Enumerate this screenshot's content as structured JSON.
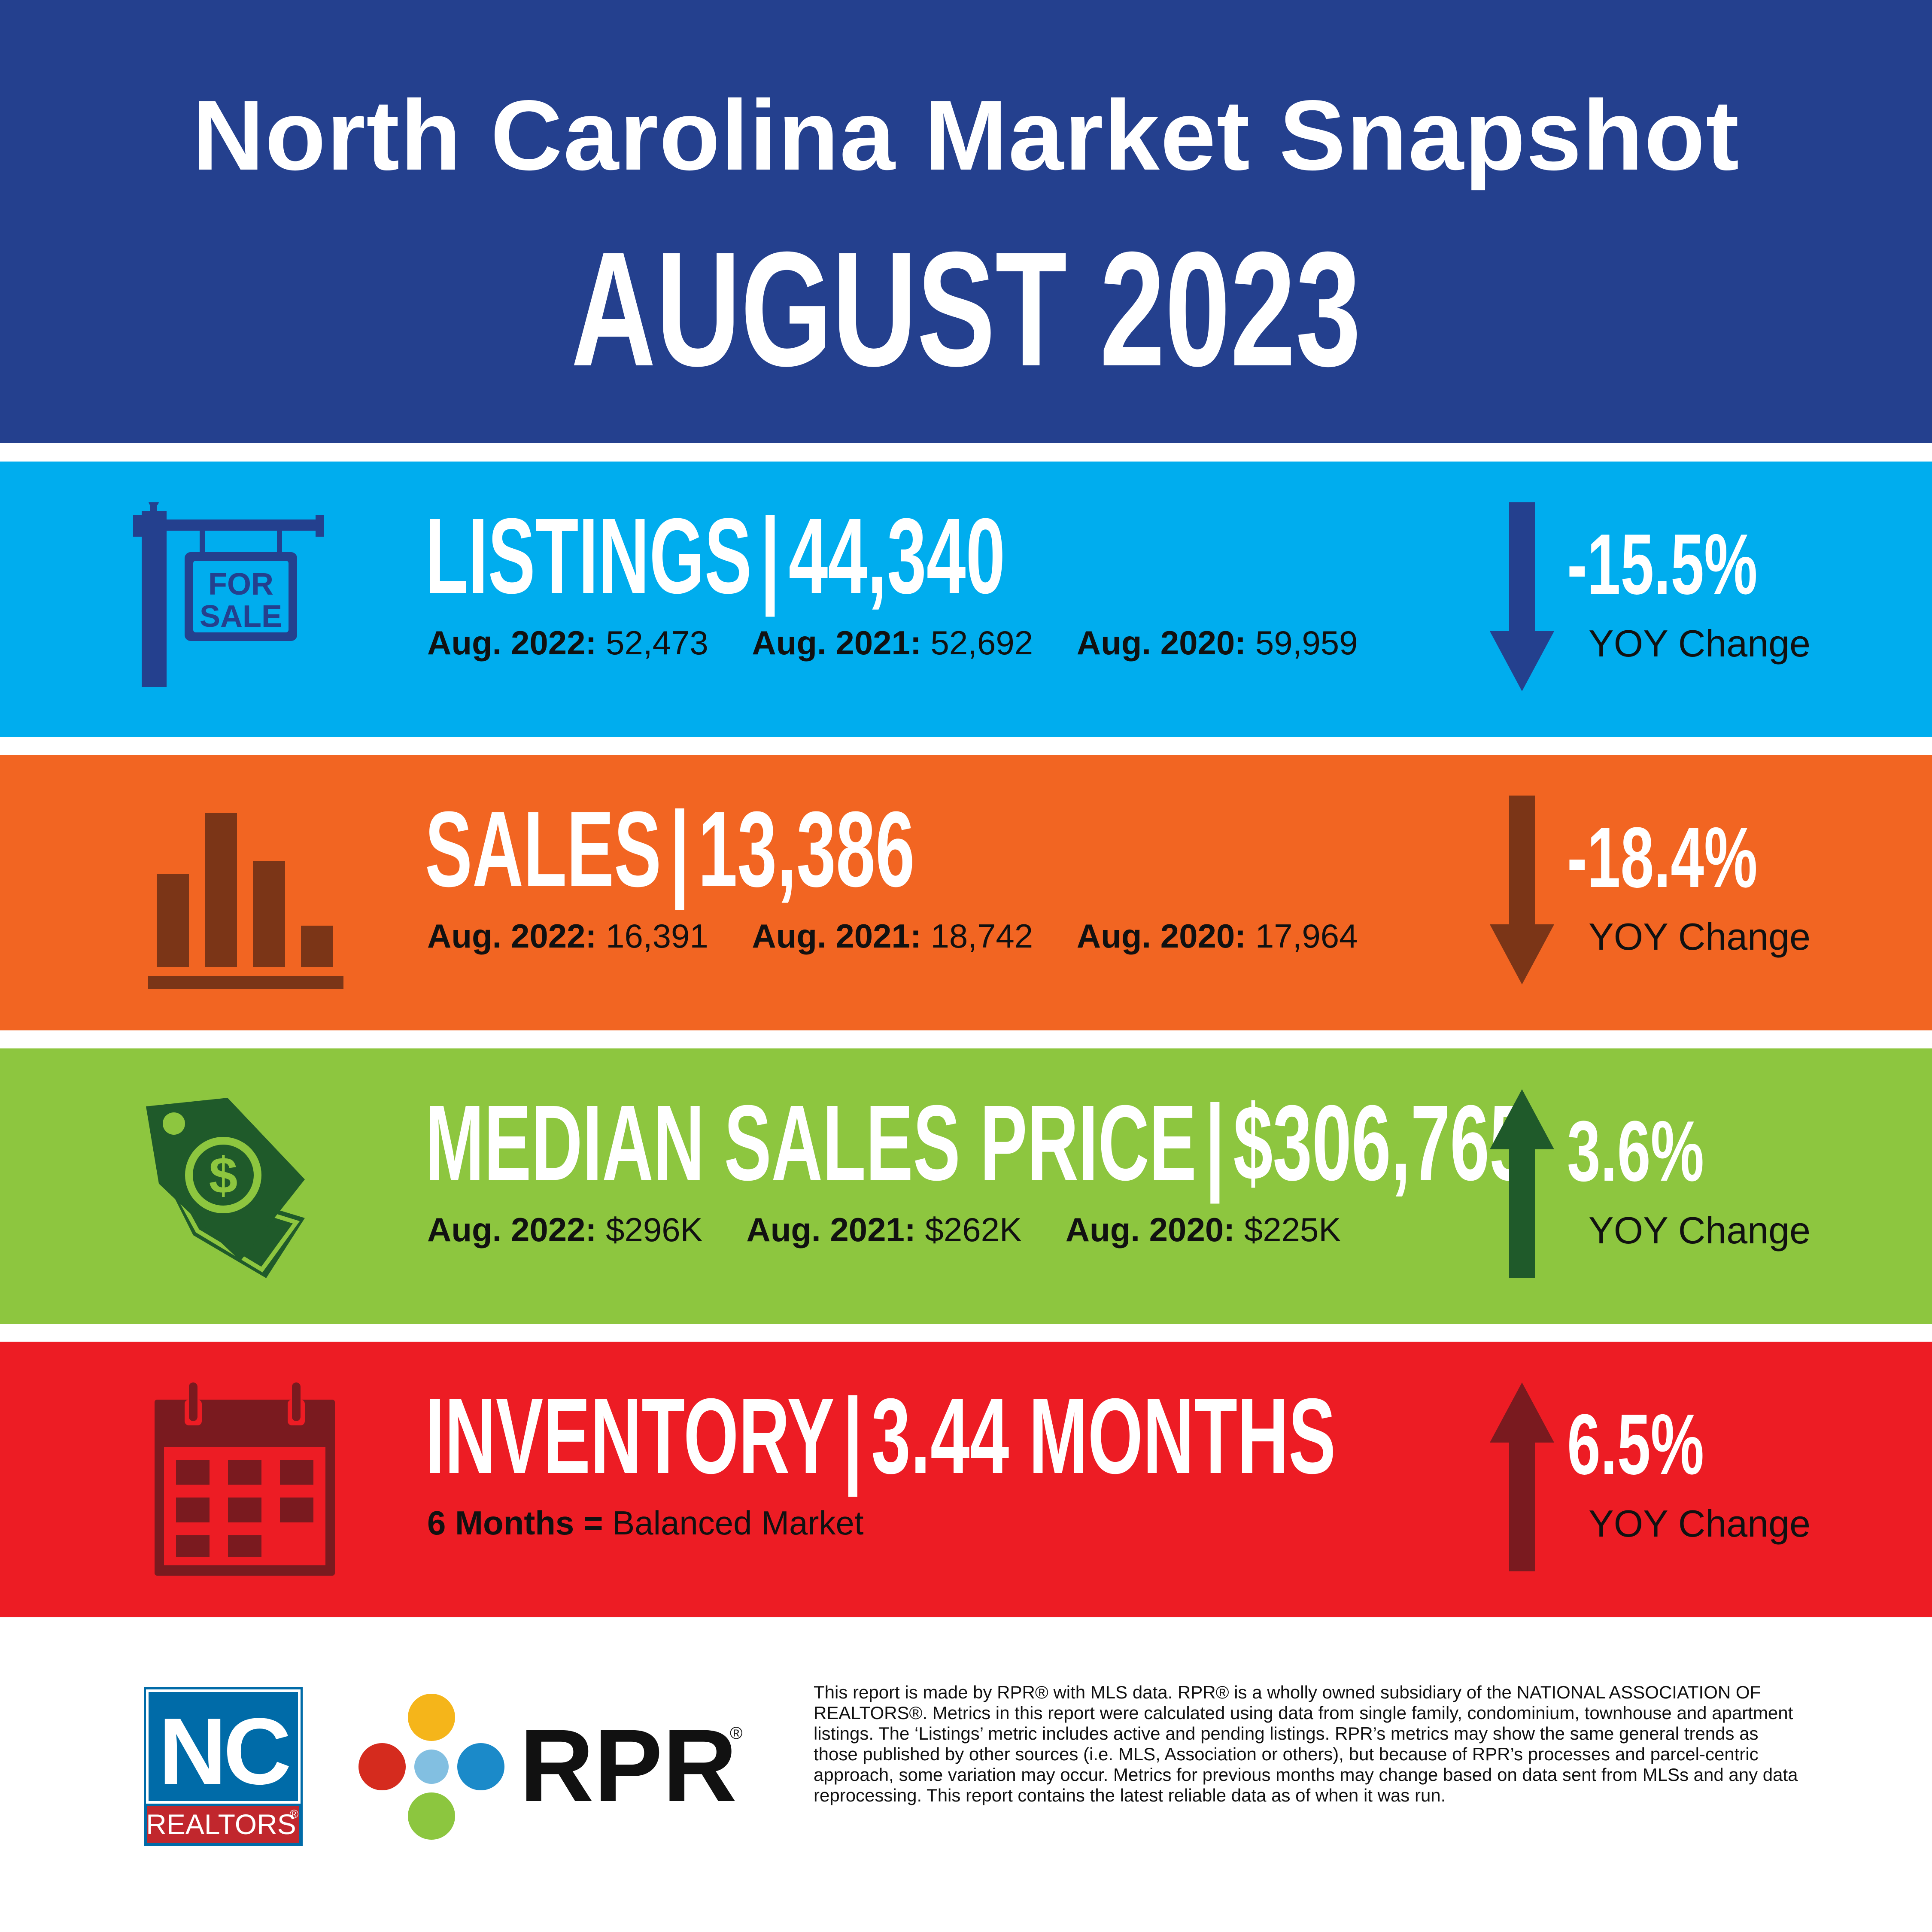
{
  "header": {
    "title": "North Carolina Market Snapshot",
    "subtitle": "AUGUST 2023",
    "background": "#24408e"
  },
  "bands": [
    {
      "id": "listings",
      "color": "#00adee",
      "icon": "for-sale-sign-icon",
      "icon_text_top": "FOR",
      "icon_text_bottom": "SALE",
      "icon_color": "#24408e",
      "label": "LISTINGS",
      "separator": "|",
      "value": "44,340",
      "history": [
        {
          "label": "Aug. 2022:",
          "value": "52,473"
        },
        {
          "label": "Aug. 2021:",
          "value": "52,692"
        },
        {
          "label": "Aug. 2020:",
          "value": "59,959"
        }
      ],
      "direction": "down",
      "change": "-15.5%",
      "change_label": "YOY Change"
    },
    {
      "id": "sales",
      "color": "#f26522",
      "icon": "bar-chart-icon",
      "icon_color": "#7b3517",
      "label": "SALES",
      "separator": "|",
      "value": "13,386",
      "history": [
        {
          "label": "Aug. 2022:",
          "value": "16,391"
        },
        {
          "label": "Aug. 2021:",
          "value": "18,742"
        },
        {
          "label": "Aug. 2020:",
          "value": "17,964"
        }
      ],
      "direction": "down",
      "change": "-18.4%",
      "change_label": "YOY Change"
    },
    {
      "id": "median-price",
      "color": "#8dc63f",
      "icon": "price-tag-icon",
      "icon_text": "$",
      "icon_color": "#1f5a2a",
      "label": "MEDIAN SALES PRICE",
      "separator": "|",
      "value": "$306,765",
      "history": [
        {
          "label": "Aug. 2022:",
          "value": "$296K"
        },
        {
          "label": "Aug. 2021:",
          "value": "$262K"
        },
        {
          "label": "Aug. 2020:",
          "value": "$225K"
        }
      ],
      "direction": "up",
      "change": "3.6%",
      "change_label": "YOY Change"
    },
    {
      "id": "inventory",
      "color": "#ed1c24",
      "icon": "calendar-icon",
      "icon_color": "#7a1a1f",
      "label": "INVENTORY",
      "separator": "|",
      "value": "3.44 MONTHS",
      "note": {
        "label": "6 Months =",
        "value": "Balanced Market"
      },
      "direction": "up",
      "change": "6.5%",
      "change_label": "YOY Change"
    }
  ],
  "footer": {
    "nc_logo": {
      "big": "NC",
      "small": "REALTORS",
      "mark": "®",
      "color": "#006ba8",
      "band_color": "#c1272d"
    },
    "rpr_logo": {
      "text": "RPR",
      "mark": "®"
    },
    "disclaimer": "This report is made by RPR® with MLS data. RPR® is a wholly owned subsidiary of the NATIONAL ASSOCIATION OF REALTORS®. Metrics in this report were calculated using data from single family, condominium, townhouse and apartment listings. The ‘Listings’ metric includes active and pending listings. RPR’s metrics may show the same general trends as those published by other sources (i.e. MLS, Association or others), but because of RPR’s processes and parcel-centric approach, some variation may occur. Metrics for previous months may change based on data sent from MLSs and any data reprocessing. This report contains the latest reliable data as of when it was run."
  }
}
